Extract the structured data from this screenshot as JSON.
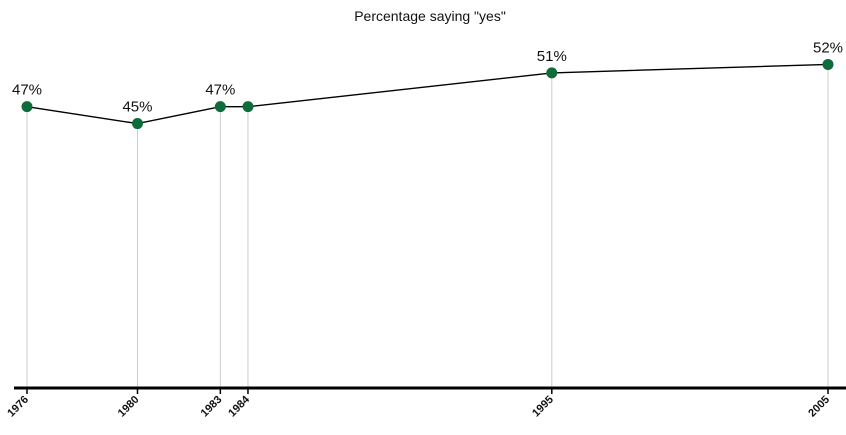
{
  "chart_data": {
    "type": "line",
    "title": "Percentage saying \"yes\"",
    "xlabel": "",
    "ylabel": "",
    "x": [
      1976,
      1980,
      1983,
      1984,
      1995,
      2005
    ],
    "tick_labels": [
      "1976",
      "1980",
      "1983",
      "1984",
      "1995",
      "2005"
    ],
    "series": [
      {
        "values": [
          47,
          45,
          47,
          47,
          51,
          52
        ]
      }
    ],
    "data_labels": [
      "47%",
      "45%",
      "47%",
      "",
      "51%",
      "52%"
    ],
    "xlim": [
      1976,
      2005
    ],
    "ylim": [
      0,
      55
    ],
    "grid": "vertical drop lines at each data point",
    "legend": "none",
    "colors": {
      "line": "#000000",
      "marker": "#0e6b3a",
      "drop_line": "#cccccc",
      "axis": "#000000"
    }
  }
}
